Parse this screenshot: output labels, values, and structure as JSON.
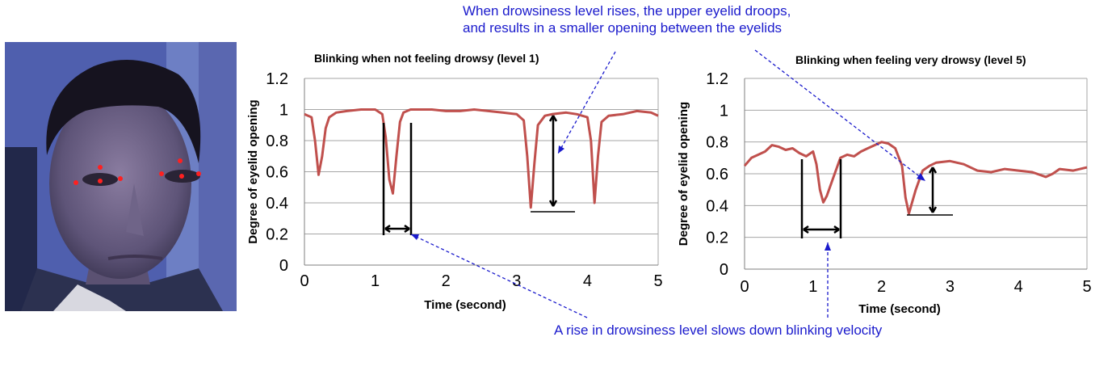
{
  "annotations": {
    "top_line1": "When drowsiness level rises, the upper eyelid droops,",
    "top_line2": "and results in a smaller opening between the eyelids",
    "bottom": "A rise in drowsiness level slows down blinking velocity"
  },
  "colors": {
    "series": "#c0504d",
    "annotation": "#1a1acc"
  },
  "chart_data": [
    {
      "type": "line",
      "title": "Blinking when not feeling drowsy (level 1)",
      "xlabel": "Time (second)",
      "ylabel": "Degree of eyelid opening",
      "xlim": [
        0,
        5
      ],
      "ylim": [
        0,
        1.2
      ],
      "xticks": [
        "0",
        "1",
        "2",
        "3",
        "4",
        "5"
      ],
      "yticks": [
        "0",
        "0.2",
        "0.4",
        "0.6",
        "0.8",
        "1",
        "1.2"
      ],
      "grid": true,
      "series": [
        {
          "x": [
            0,
            0.1,
            0.15,
            0.2,
            0.25,
            0.3,
            0.35,
            0.45,
            0.6,
            0.8,
            1.0,
            1.1,
            1.15,
            1.2,
            1.25,
            1.3,
            1.35,
            1.4,
            1.5,
            1.6,
            1.8,
            2.0,
            2.2,
            2.4,
            2.6,
            2.8,
            3.0,
            3.1,
            3.15,
            3.2,
            3.25,
            3.3,
            3.4,
            3.5,
            3.7,
            3.85,
            4.0,
            4.05,
            4.1,
            4.15,
            4.2,
            4.3,
            4.5,
            4.7,
            4.9,
            5.0
          ],
          "y": [
            0.97,
            0.95,
            0.8,
            0.58,
            0.7,
            0.88,
            0.95,
            0.98,
            0.99,
            1.0,
            1.0,
            0.97,
            0.82,
            0.55,
            0.46,
            0.7,
            0.92,
            0.98,
            1.0,
            1.0,
            1.0,
            0.99,
            0.99,
            1.0,
            0.99,
            0.98,
            0.97,
            0.93,
            0.7,
            0.37,
            0.65,
            0.9,
            0.96,
            0.97,
            0.98,
            0.97,
            0.95,
            0.8,
            0.4,
            0.7,
            0.92,
            0.96,
            0.97,
            0.99,
            0.98,
            0.96
          ]
        }
      ]
    },
    {
      "type": "line",
      "title": "Blinking when feeling very drowsy (level 5)",
      "xlabel": "Time (second)",
      "ylabel": "Degree of eyelid opening",
      "xlim": [
        0,
        5
      ],
      "ylim": [
        0,
        1.2
      ],
      "xticks": [
        "0",
        "1",
        "2",
        "3",
        "4",
        "5"
      ],
      "yticks": [
        "0",
        "0.2",
        "0.4",
        "0.6",
        "0.8",
        "1",
        "1.2"
      ],
      "grid": true,
      "series": [
        {
          "x": [
            0,
            0.1,
            0.2,
            0.3,
            0.4,
            0.5,
            0.6,
            0.7,
            0.8,
            0.9,
            1.0,
            1.05,
            1.1,
            1.15,
            1.2,
            1.3,
            1.4,
            1.5,
            1.6,
            1.7,
            1.8,
            1.9,
            2.0,
            2.1,
            2.2,
            2.3,
            2.35,
            2.4,
            2.5,
            2.6,
            2.7,
            2.8,
            3.0,
            3.2,
            3.4,
            3.6,
            3.8,
            4.0,
            4.2,
            4.4,
            4.5,
            4.6,
            4.8,
            5.0
          ],
          "y": [
            0.65,
            0.7,
            0.72,
            0.74,
            0.78,
            0.77,
            0.75,
            0.76,
            0.73,
            0.71,
            0.74,
            0.66,
            0.5,
            0.42,
            0.46,
            0.58,
            0.7,
            0.72,
            0.71,
            0.74,
            0.76,
            0.78,
            0.8,
            0.79,
            0.76,
            0.65,
            0.45,
            0.35,
            0.5,
            0.62,
            0.65,
            0.67,
            0.68,
            0.66,
            0.62,
            0.61,
            0.63,
            0.62,
            0.61,
            0.58,
            0.6,
            0.63,
            0.62,
            0.64
          ]
        }
      ]
    }
  ]
}
